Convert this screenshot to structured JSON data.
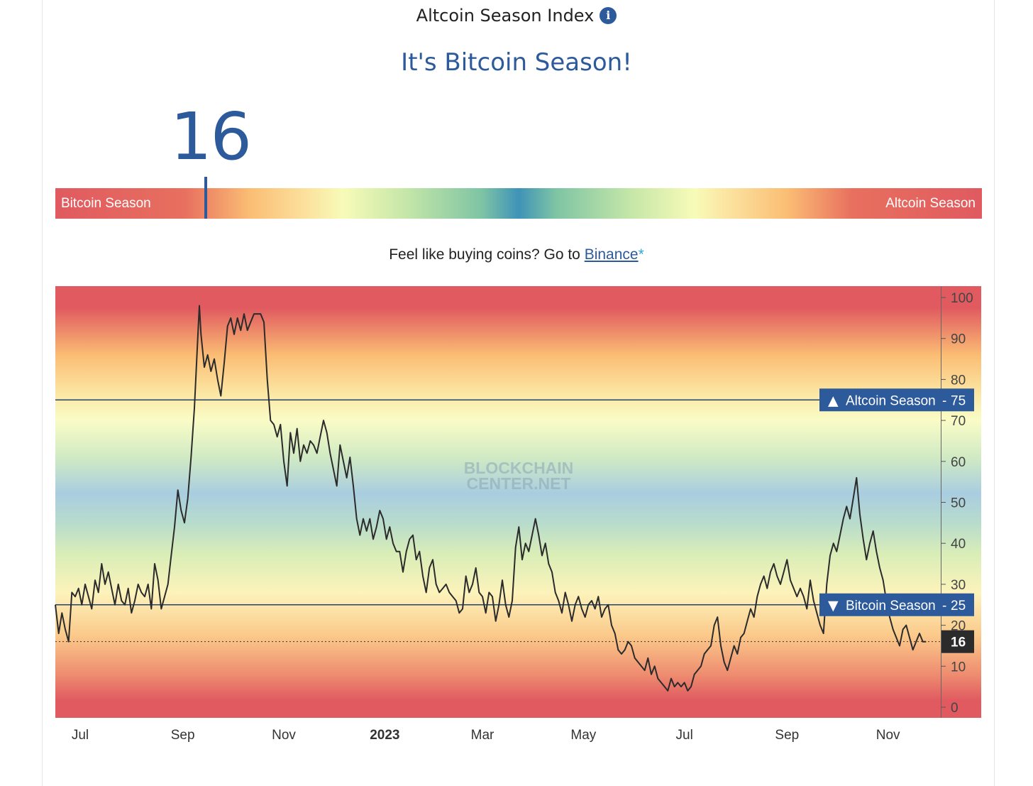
{
  "header": {
    "title": "Altcoin Season Index",
    "info_icon": "i",
    "headline": "It's Bitcoin Season!"
  },
  "gauge": {
    "value": "16",
    "value_num": 16,
    "left_label": "Bitcoin Season",
    "right_label": "Altcoin Season"
  },
  "cta": {
    "prefix": "Feel like buying coins? Go to ",
    "link_text": "Binance",
    "suffix": "*"
  },
  "chart_data": {
    "type": "line",
    "title": "Altcoin Season Index history",
    "watermark": [
      "BLOCKCHAIN",
      "CENTER.NET"
    ],
    "ylim": [
      0,
      100
    ],
    "y_ticks": [
      "100",
      "90",
      "80",
      "70",
      "60",
      "50",
      "40",
      "30",
      "20",
      "10",
      "0"
    ],
    "x_tick_labels": [
      "Jul",
      "Sep",
      "Nov",
      "2023",
      "Mar",
      "May",
      "Jul",
      "Sep",
      "Nov"
    ],
    "x_range_days": [
      0,
      540
    ],
    "x_tick_days": [
      15,
      77,
      138,
      199,
      258,
      319,
      380,
      442,
      503
    ],
    "thresholds": [
      {
        "value": 75,
        "arrow": "▲",
        "label": "Altcoin Season",
        "value_text": "75"
      },
      {
        "value": 25,
        "arrow": "▼",
        "label": "Bitcoin Season",
        "value_text": "25"
      }
    ],
    "current": {
      "value": 16,
      "label": "16"
    },
    "series_name": "Altcoin Season Index",
    "series_points": [
      [
        0,
        25
      ],
      [
        2,
        18
      ],
      [
        4,
        23
      ],
      [
        6,
        19
      ],
      [
        8,
        16
      ],
      [
        10,
        28
      ],
      [
        12,
        27
      ],
      [
        14,
        29
      ],
      [
        16,
        25
      ],
      [
        18,
        30
      ],
      [
        20,
        27
      ],
      [
        22,
        24
      ],
      [
        24,
        31
      ],
      [
        26,
        28
      ],
      [
        28,
        35
      ],
      [
        30,
        30
      ],
      [
        32,
        33
      ],
      [
        34,
        29
      ],
      [
        36,
        25
      ],
      [
        38,
        30
      ],
      [
        40,
        26
      ],
      [
        42,
        25
      ],
      [
        44,
        29
      ],
      [
        46,
        23
      ],
      [
        48,
        26
      ],
      [
        50,
        30
      ],
      [
        52,
        28
      ],
      [
        54,
        27
      ],
      [
        56,
        30
      ],
      [
        58,
        24
      ],
      [
        60,
        35
      ],
      [
        62,
        31
      ],
      [
        64,
        24
      ],
      [
        66,
        27
      ],
      [
        68,
        30
      ],
      [
        70,
        37
      ],
      [
        72,
        44
      ],
      [
        74,
        53
      ],
      [
        76,
        48
      ],
      [
        78,
        45
      ],
      [
        80,
        51
      ],
      [
        82,
        61
      ],
      [
        84,
        73
      ],
      [
        86,
        90
      ],
      [
        87,
        98
      ],
      [
        88,
        91
      ],
      [
        90,
        83
      ],
      [
        92,
        86
      ],
      [
        94,
        82
      ],
      [
        96,
        85
      ],
      [
        98,
        80
      ],
      [
        100,
        76
      ],
      [
        102,
        84
      ],
      [
        104,
        93
      ],
      [
        106,
        95
      ],
      [
        108,
        91
      ],
      [
        110,
        95
      ],
      [
        112,
        92
      ],
      [
        114,
        96
      ],
      [
        116,
        92
      ],
      [
        118,
        94
      ],
      [
        120,
        96
      ],
      [
        122,
        96
      ],
      [
        124,
        96
      ],
      [
        126,
        94
      ],
      [
        128,
        80
      ],
      [
        130,
        70
      ],
      [
        132,
        69
      ],
      [
        134,
        66
      ],
      [
        136,
        69
      ],
      [
        138,
        60
      ],
      [
        140,
        54
      ],
      [
        142,
        67
      ],
      [
        144,
        62
      ],
      [
        146,
        68
      ],
      [
        148,
        60
      ],
      [
        150,
        64
      ],
      [
        152,
        62
      ],
      [
        154,
        65
      ],
      [
        156,
        64
      ],
      [
        158,
        62
      ],
      [
        160,
        66
      ],
      [
        162,
        70
      ],
      [
        164,
        67
      ],
      [
        166,
        62
      ],
      [
        168,
        58
      ],
      [
        170,
        54
      ],
      [
        172,
        64
      ],
      [
        174,
        60
      ],
      [
        176,
        56
      ],
      [
        178,
        61
      ],
      [
        180,
        54
      ],
      [
        182,
        46
      ],
      [
        184,
        42
      ],
      [
        186,
        46
      ],
      [
        188,
        43
      ],
      [
        190,
        46
      ],
      [
        192,
        41
      ],
      [
        194,
        44
      ],
      [
        196,
        48
      ],
      [
        198,
        46
      ],
      [
        200,
        41
      ],
      [
        202,
        44
      ],
      [
        204,
        40
      ],
      [
        206,
        38
      ],
      [
        208,
        38
      ],
      [
        210,
        33
      ],
      [
        212,
        38
      ],
      [
        214,
        41
      ],
      [
        216,
        42
      ],
      [
        218,
        36
      ],
      [
        220,
        38
      ],
      [
        222,
        32
      ],
      [
        224,
        28
      ],
      [
        226,
        34
      ],
      [
        228,
        36
      ],
      [
        230,
        30
      ],
      [
        232,
        28
      ],
      [
        234,
        29
      ],
      [
        236,
        30
      ],
      [
        238,
        28
      ],
      [
        240,
        27
      ],
      [
        242,
        26
      ],
      [
        244,
        23
      ],
      [
        246,
        24
      ],
      [
        248,
        32
      ],
      [
        250,
        28
      ],
      [
        252,
        30
      ],
      [
        254,
        34
      ],
      [
        256,
        28
      ],
      [
        258,
        27
      ],
      [
        260,
        23
      ],
      [
        262,
        28
      ],
      [
        264,
        27
      ],
      [
        266,
        21
      ],
      [
        268,
        25
      ],
      [
        270,
        31
      ],
      [
        272,
        25
      ],
      [
        274,
        22
      ],
      [
        276,
        26
      ],
      [
        278,
        39
      ],
      [
        280,
        44
      ],
      [
        282,
        36
      ],
      [
        284,
        40
      ],
      [
        286,
        38
      ],
      [
        288,
        42
      ],
      [
        290,
        46
      ],
      [
        292,
        42
      ],
      [
        294,
        37
      ],
      [
        296,
        40
      ],
      [
        298,
        35
      ],
      [
        300,
        33
      ],
      [
        302,
        28
      ],
      [
        304,
        26
      ],
      [
        306,
        23
      ],
      [
        308,
        28
      ],
      [
        310,
        25
      ],
      [
        312,
        21
      ],
      [
        314,
        25
      ],
      [
        316,
        27
      ],
      [
        318,
        24
      ],
      [
        320,
        22
      ],
      [
        322,
        25
      ],
      [
        324,
        26
      ],
      [
        326,
        24
      ],
      [
        328,
        27
      ],
      [
        330,
        22
      ],
      [
        332,
        24
      ],
      [
        334,
        25
      ],
      [
        336,
        20
      ],
      [
        338,
        18
      ],
      [
        340,
        14
      ],
      [
        342,
        13
      ],
      [
        344,
        14
      ],
      [
        346,
        16
      ],
      [
        348,
        15
      ],
      [
        350,
        12
      ],
      [
        352,
        11
      ],
      [
        354,
        10
      ],
      [
        356,
        9
      ],
      [
        358,
        12
      ],
      [
        360,
        8
      ],
      [
        362,
        10
      ],
      [
        364,
        7
      ],
      [
        366,
        6
      ],
      [
        368,
        5
      ],
      [
        370,
        4
      ],
      [
        372,
        7
      ],
      [
        374,
        5
      ],
      [
        376,
        6
      ],
      [
        378,
        5
      ],
      [
        380,
        6
      ],
      [
        382,
        4
      ],
      [
        384,
        5
      ],
      [
        386,
        8
      ],
      [
        388,
        9
      ],
      [
        390,
        10
      ],
      [
        392,
        13
      ],
      [
        394,
        14
      ],
      [
        396,
        15
      ],
      [
        398,
        20
      ],
      [
        400,
        22
      ],
      [
        402,
        15
      ],
      [
        404,
        11
      ],
      [
        406,
        9
      ],
      [
        408,
        12
      ],
      [
        410,
        15
      ],
      [
        412,
        13
      ],
      [
        414,
        17
      ],
      [
        416,
        18
      ],
      [
        418,
        21
      ],
      [
        420,
        24
      ],
      [
        422,
        22
      ],
      [
        424,
        27
      ],
      [
        426,
        30
      ],
      [
        428,
        32
      ],
      [
        430,
        29
      ],
      [
        432,
        33
      ],
      [
        434,
        35
      ],
      [
        436,
        32
      ],
      [
        438,
        30
      ],
      [
        440,
        33
      ],
      [
        442,
        36
      ],
      [
        444,
        31
      ],
      [
        446,
        29
      ],
      [
        448,
        27
      ],
      [
        450,
        29
      ],
      [
        452,
        27
      ],
      [
        454,
        24
      ],
      [
        456,
        31
      ],
      [
        458,
        26
      ],
      [
        460,
        23
      ],
      [
        462,
        20
      ],
      [
        464,
        18
      ],
      [
        466,
        30
      ],
      [
        468,
        37
      ],
      [
        470,
        40
      ],
      [
        472,
        38
      ],
      [
        474,
        42
      ],
      [
        476,
        46
      ],
      [
        478,
        49
      ],
      [
        480,
        46
      ],
      [
        482,
        51
      ],
      [
        484,
        56
      ],
      [
        486,
        47
      ],
      [
        488,
        41
      ],
      [
        490,
        36
      ],
      [
        492,
        40
      ],
      [
        494,
        43
      ],
      [
        496,
        38
      ],
      [
        498,
        34
      ],
      [
        500,
        31
      ],
      [
        502,
        26
      ],
      [
        504,
        22
      ],
      [
        506,
        19
      ],
      [
        508,
        17
      ],
      [
        510,
        15
      ],
      [
        512,
        19
      ],
      [
        514,
        20
      ],
      [
        516,
        17
      ],
      [
        518,
        14
      ],
      [
        520,
        16
      ],
      [
        522,
        18
      ],
      [
        524,
        16
      ],
      [
        526,
        16
      ]
    ]
  }
}
